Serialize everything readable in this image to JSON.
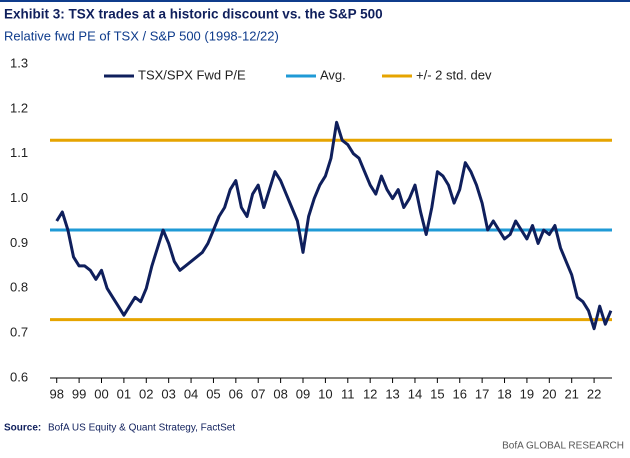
{
  "chart_data": {
    "type": "line",
    "title": "Exhibit 3: TSX trades at a historic discount vs. the S&P 500",
    "subtitle": "Relative fwd PE of TSX / S&P 500 (1998-12/22)",
    "source_label": "Source:",
    "source": "BofA US Equity & Quant Strategy, FactSet",
    "footer": "BofA GLOBAL RESEARCH",
    "x": [
      1998,
      1998.25,
      1998.5,
      1998.75,
      1999,
      1999.25,
      1999.5,
      1999.75,
      2000,
      2000.25,
      2000.5,
      2000.75,
      2001,
      2001.25,
      2001.5,
      2001.75,
      2002,
      2002.25,
      2002.5,
      2002.75,
      2003,
      2003.25,
      2003.5,
      2003.75,
      2004,
      2004.25,
      2004.5,
      2004.75,
      2005,
      2005.25,
      2005.5,
      2005.75,
      2006,
      2006.25,
      2006.5,
      2006.75,
      2007,
      2007.25,
      2007.5,
      2007.75,
      2008,
      2008.25,
      2008.5,
      2008.75,
      2009,
      2009.25,
      2009.5,
      2009.75,
      2010,
      2010.25,
      2010.5,
      2010.75,
      2011,
      2011.25,
      2011.5,
      2011.75,
      2012,
      2012.25,
      2012.5,
      2012.75,
      2013,
      2013.25,
      2013.5,
      2013.75,
      2014,
      2014.25,
      2014.5,
      2014.75,
      2015,
      2015.25,
      2015.5,
      2015.75,
      2016,
      2016.25,
      2016.5,
      2016.75,
      2017,
      2017.25,
      2017.5,
      2017.75,
      2018,
      2018.25,
      2018.5,
      2018.75,
      2019,
      2019.25,
      2019.5,
      2019.75,
      2020,
      2020.25,
      2020.5,
      2020.75,
      2021,
      2021.25,
      2021.5,
      2021.75,
      2022,
      2022.25,
      2022.5,
      2022.75
    ],
    "series": [
      {
        "name": "TSX/SPX Fwd P/E",
        "color": "#0f1f5c",
        "values": [
          0.95,
          0.97,
          0.93,
          0.87,
          0.85,
          0.85,
          0.84,
          0.82,
          0.84,
          0.8,
          0.78,
          0.76,
          0.74,
          0.76,
          0.78,
          0.77,
          0.8,
          0.85,
          0.89,
          0.93,
          0.9,
          0.86,
          0.84,
          0.85,
          0.86,
          0.87,
          0.88,
          0.9,
          0.93,
          0.96,
          0.98,
          1.02,
          1.04,
          0.98,
          0.96,
          1.01,
          1.03,
          0.98,
          1.02,
          1.06,
          1.04,
          1.01,
          0.98,
          0.95,
          0.88,
          0.96,
          1.0,
          1.03,
          1.05,
          1.09,
          1.17,
          1.13,
          1.12,
          1.1,
          1.09,
          1.06,
          1.03,
          1.01,
          1.05,
          1.02,
          1.0,
          1.02,
          0.98,
          1.0,
          1.03,
          0.97,
          0.92,
          0.98,
          1.06,
          1.05,
          1.03,
          0.99,
          1.02,
          1.08,
          1.06,
          1.03,
          0.99,
          0.93,
          0.95,
          0.93,
          0.91,
          0.92,
          0.95,
          0.93,
          0.91,
          0.94,
          0.9,
          0.93,
          0.92,
          0.94,
          0.89,
          0.86,
          0.83,
          0.78,
          0.77,
          0.75,
          0.71,
          0.76,
          0.72,
          0.75
        ]
      }
    ],
    "hlines": [
      {
        "name": "Avg.",
        "color": "#1f9ad6",
        "values": [
          0.93
        ]
      },
      {
        "name": "+/- 2 std. dev",
        "color": "#e6a400",
        "values": [
          1.13,
          0.73
        ]
      }
    ],
    "xlim": [
      1997.7,
      2022.8
    ],
    "xticks": [
      {
        "value": 1998,
        "label": "98"
      },
      {
        "value": 1999,
        "label": "99"
      },
      {
        "value": 2000,
        "label": "00"
      },
      {
        "value": 2001,
        "label": "01"
      },
      {
        "value": 2002,
        "label": "02"
      },
      {
        "value": 2003,
        "label": "03"
      },
      {
        "value": 2004,
        "label": "04"
      },
      {
        "value": 2005,
        "label": "05"
      },
      {
        "value": 2006,
        "label": "06"
      },
      {
        "value": 2007,
        "label": "07"
      },
      {
        "value": 2008,
        "label": "08"
      },
      {
        "value": 2009,
        "label": "09"
      },
      {
        "value": 2010,
        "label": "10"
      },
      {
        "value": 2011,
        "label": "11"
      },
      {
        "value": 2012,
        "label": "12"
      },
      {
        "value": 2013,
        "label": "13"
      },
      {
        "value": 2014,
        "label": "14"
      },
      {
        "value": 2015,
        "label": "15"
      },
      {
        "value": 2016,
        "label": "16"
      },
      {
        "value": 2017,
        "label": "17"
      },
      {
        "value": 2018,
        "label": "18"
      },
      {
        "value": 2019,
        "label": "19"
      },
      {
        "value": 2020,
        "label": "20"
      },
      {
        "value": 2021,
        "label": "21"
      },
      {
        "value": 2022,
        "label": "22"
      }
    ],
    "ylim": [
      0.6,
      1.3
    ],
    "yticks": [
      0.6,
      0.7,
      0.8,
      0.9,
      {
        "value": 1,
        "label": "1.0"
      },
      1.1,
      1.2,
      1.3
    ],
    "grid": false
  }
}
